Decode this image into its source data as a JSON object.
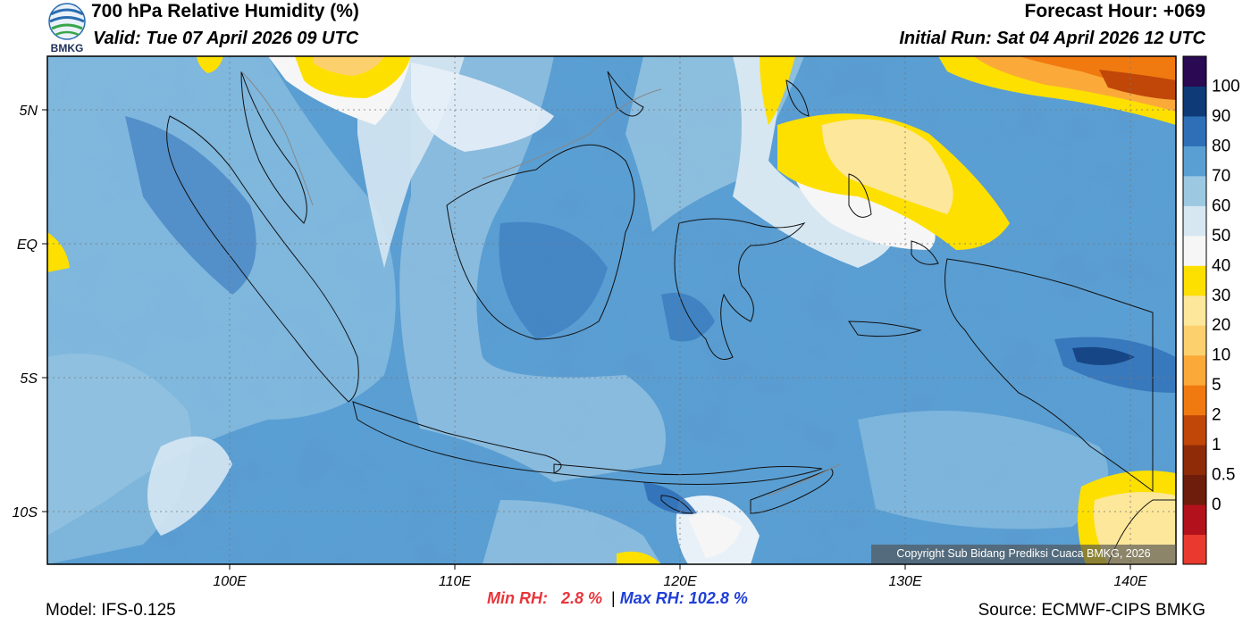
{
  "header": {
    "title": "700 hPa Relative Humidity (%)",
    "valid": "Valid: Tue 07 April 2026 09 UTC",
    "forecast_hour": "Forecast Hour: +069",
    "initial_run": "Initial Run: Sat 04 April 2026 12 UTC",
    "logo_text": "BMKG"
  },
  "map": {
    "lat_ticks": [
      "5N",
      "EQ",
      "5S",
      "10S"
    ],
    "lon_ticks": [
      "100E",
      "110E",
      "120E",
      "130E",
      "140E"
    ],
    "copyright": "Copyright Sub Bidang Prediksi Cuaca BMKG, 2026"
  },
  "colorbar": {
    "labels": [
      "100",
      "90",
      "80",
      "70",
      "60",
      "50",
      "40",
      "30",
      "20",
      "10",
      "5",
      "2",
      "1",
      "0.5",
      "0"
    ],
    "colors": [
      "#e83a2e",
      "#b3121c",
      "#6e1d0c",
      "#8e2c08",
      "#c04708",
      "#f07a10",
      "#fbaa3a",
      "#fdd06e",
      "#fde79a",
      "#fde000",
      "#f6f6f6",
      "#d6e7f2",
      "#9dc8e2",
      "#5a9fd3",
      "#2f6fb8",
      "#0f3a78",
      "#2a0a52"
    ]
  },
  "stats": {
    "min_label": "Min RH:",
    "min_value": "2.8 %",
    "separator": "|",
    "max_label": "Max RH:",
    "max_value": "102.8 %"
  },
  "footer": {
    "model": "Model: IFS-0.125",
    "source": "Source: ECMWF-CIPS BMKG"
  },
  "style": {
    "min_color": "#e8363c",
    "max_color": "#1f3fd8"
  }
}
